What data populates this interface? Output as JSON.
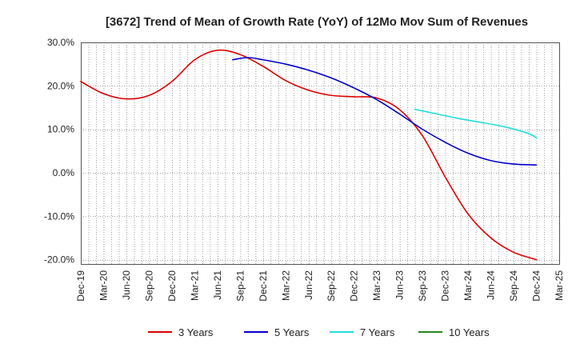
{
  "chart_data": {
    "type": "line",
    "title": "[3672]  Trend of Mean of Growth Rate (YoY) of 12Mo Mov Sum of Revenues",
    "xlabel": "",
    "ylabel": "",
    "ylim": [
      -21,
      30
    ],
    "yticks": [
      30,
      20,
      10,
      0,
      -10,
      -20
    ],
    "ytick_labels": [
      "30.0%",
      "20.0%",
      "10.0%",
      "0.0%",
      "-10.0%",
      "-20.0%"
    ],
    "x_tick_labels": [
      "Dec-19",
      "Mar-20",
      "Jun-20",
      "Sep-20",
      "Dec-20",
      "Mar-21",
      "Jun-21",
      "Sep-21",
      "Dec-21",
      "Mar-22",
      "Jun-22",
      "Sep-22",
      "Dec-22",
      "Mar-23",
      "Jun-23",
      "Sep-23",
      "Dec-23",
      "Mar-24",
      "Jun-24",
      "Sep-24",
      "Dec-24",
      "Mar-25"
    ],
    "x_range_months": [
      0,
      63
    ],
    "grid": true,
    "legend_position": "bottom",
    "series": [
      {
        "name": "3 Years",
        "color": "#dd0000",
        "x": [
          0,
          3,
          6,
          9,
          12,
          15,
          18,
          21,
          24,
          27,
          30,
          33,
          36,
          39,
          42,
          45,
          48,
          51,
          54,
          57,
          60
        ],
        "values": [
          21,
          18.2,
          17,
          17.8,
          21,
          26,
          28.2,
          27.2,
          24.5,
          21.2,
          19,
          17.8,
          17.5,
          17.2,
          14.5,
          8.5,
          -1,
          -9.5,
          -15,
          -18.3,
          -20
        ]
      },
      {
        "name": "5 Years",
        "color": "#0000cc",
        "x": [
          20,
          22,
          24,
          27,
          30,
          33,
          36,
          39,
          42,
          45,
          48,
          51,
          54,
          57,
          60
        ],
        "values": [
          26,
          26.5,
          26,
          25,
          23.6,
          21.8,
          19.5,
          16.8,
          13.5,
          10,
          7,
          4.5,
          2.8,
          2,
          1.8
        ]
      },
      {
        "name": "7 Years",
        "color": "#22dddd",
        "x": [
          44,
          47,
          50,
          53,
          56,
          59,
          60
        ],
        "values": [
          14.6,
          13.5,
          12.4,
          11.5,
          10.5,
          9,
          8
        ]
      },
      {
        "name": "10 Years",
        "color": "#228822",
        "x": [],
        "values": []
      }
    ]
  }
}
